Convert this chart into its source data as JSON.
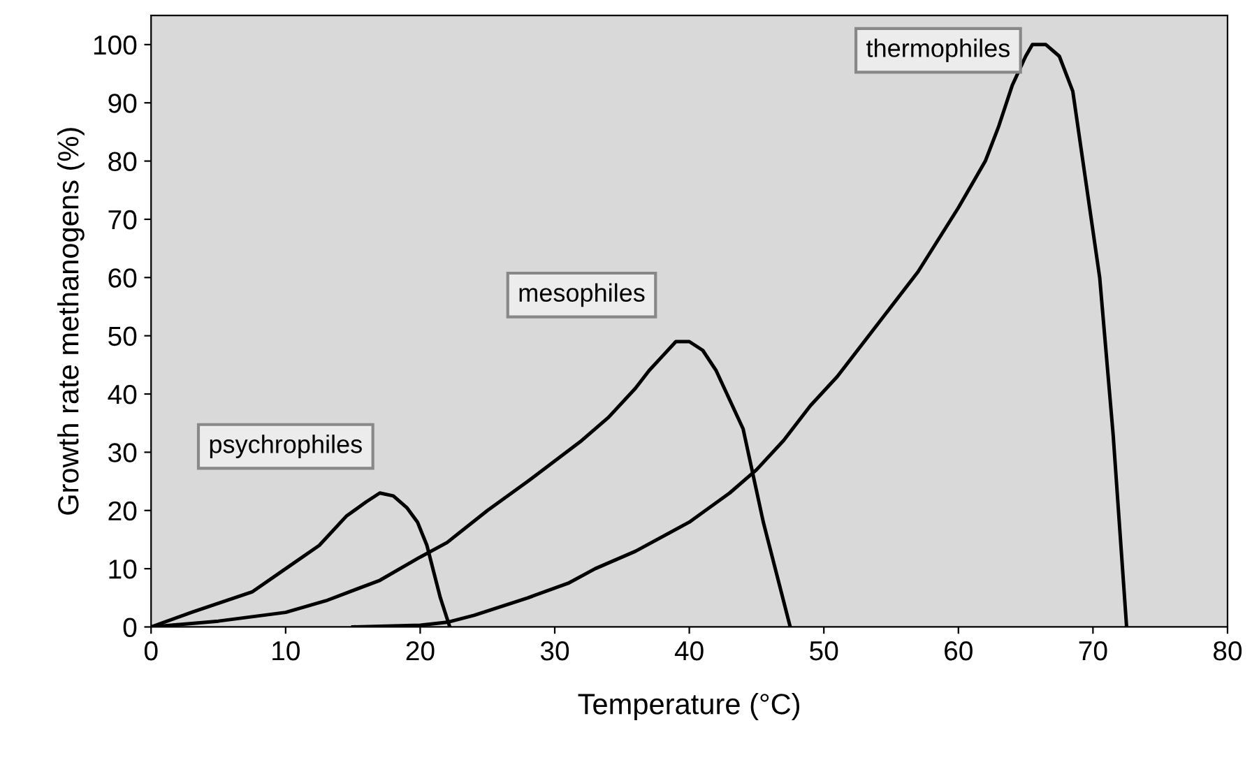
{
  "chart_data": {
    "type": "line",
    "xlabel": "Temperature (°C)",
    "ylabel": "Growth rate methanogens (%)",
    "xlim": [
      0,
      80
    ],
    "xticks": [
      0,
      10,
      20,
      30,
      40,
      50,
      60,
      70,
      80
    ],
    "ylim": [
      0,
      105
    ],
    "yticks": [
      0,
      10,
      20,
      30,
      40,
      50,
      60,
      70,
      80,
      90,
      100
    ],
    "grid": false,
    "legend": false,
    "marker": "none",
    "line_style": "solid",
    "series": [
      {
        "name": "psychrophiles",
        "color": "#000000",
        "x": [
          0,
          3,
          7.5,
          10,
          12.5,
          14.5,
          16,
          17,
          18,
          19,
          19.8,
          20.5,
          21.5,
          22.2
        ],
        "values": [
          0,
          2.5,
          6,
          10,
          14,
          19,
          21.5,
          23,
          22.5,
          20.5,
          18,
          14,
          5,
          0
        ]
      },
      {
        "name": "mesophiles",
        "color": "#000000",
        "x": [
          0,
          5,
          10,
          13,
          17,
          20,
          22,
          25,
          28,
          32,
          34,
          36,
          37,
          38,
          39,
          40,
          41,
          42,
          44,
          45.5,
          47.5
        ],
        "values": [
          0,
          1,
          2.5,
          4.5,
          8,
          12,
          14.5,
          20,
          25,
          32,
          36,
          41,
          44,
          46.5,
          49,
          49,
          47.5,
          44,
          34,
          18,
          0
        ]
      },
      {
        "name": "thermophiles",
        "color": "#000000",
        "x": [
          15,
          20,
          22,
          24,
          28,
          31,
          33,
          36,
          40,
          43,
          45,
          47,
          49,
          51,
          54,
          57,
          60,
          62,
          63,
          64,
          65,
          65.5,
          66.5,
          67.5,
          68.5,
          69.5,
          70.5,
          71.5,
          72.5
        ],
        "values": [
          0,
          0.3,
          0.8,
          2,
          5,
          7.5,
          10,
          13,
          18,
          23,
          27,
          32,
          38,
          43,
          52,
          61,
          72,
          80,
          86,
          93,
          98,
          100,
          100,
          98,
          92,
          76,
          60,
          33,
          0
        ]
      }
    ]
  }
}
